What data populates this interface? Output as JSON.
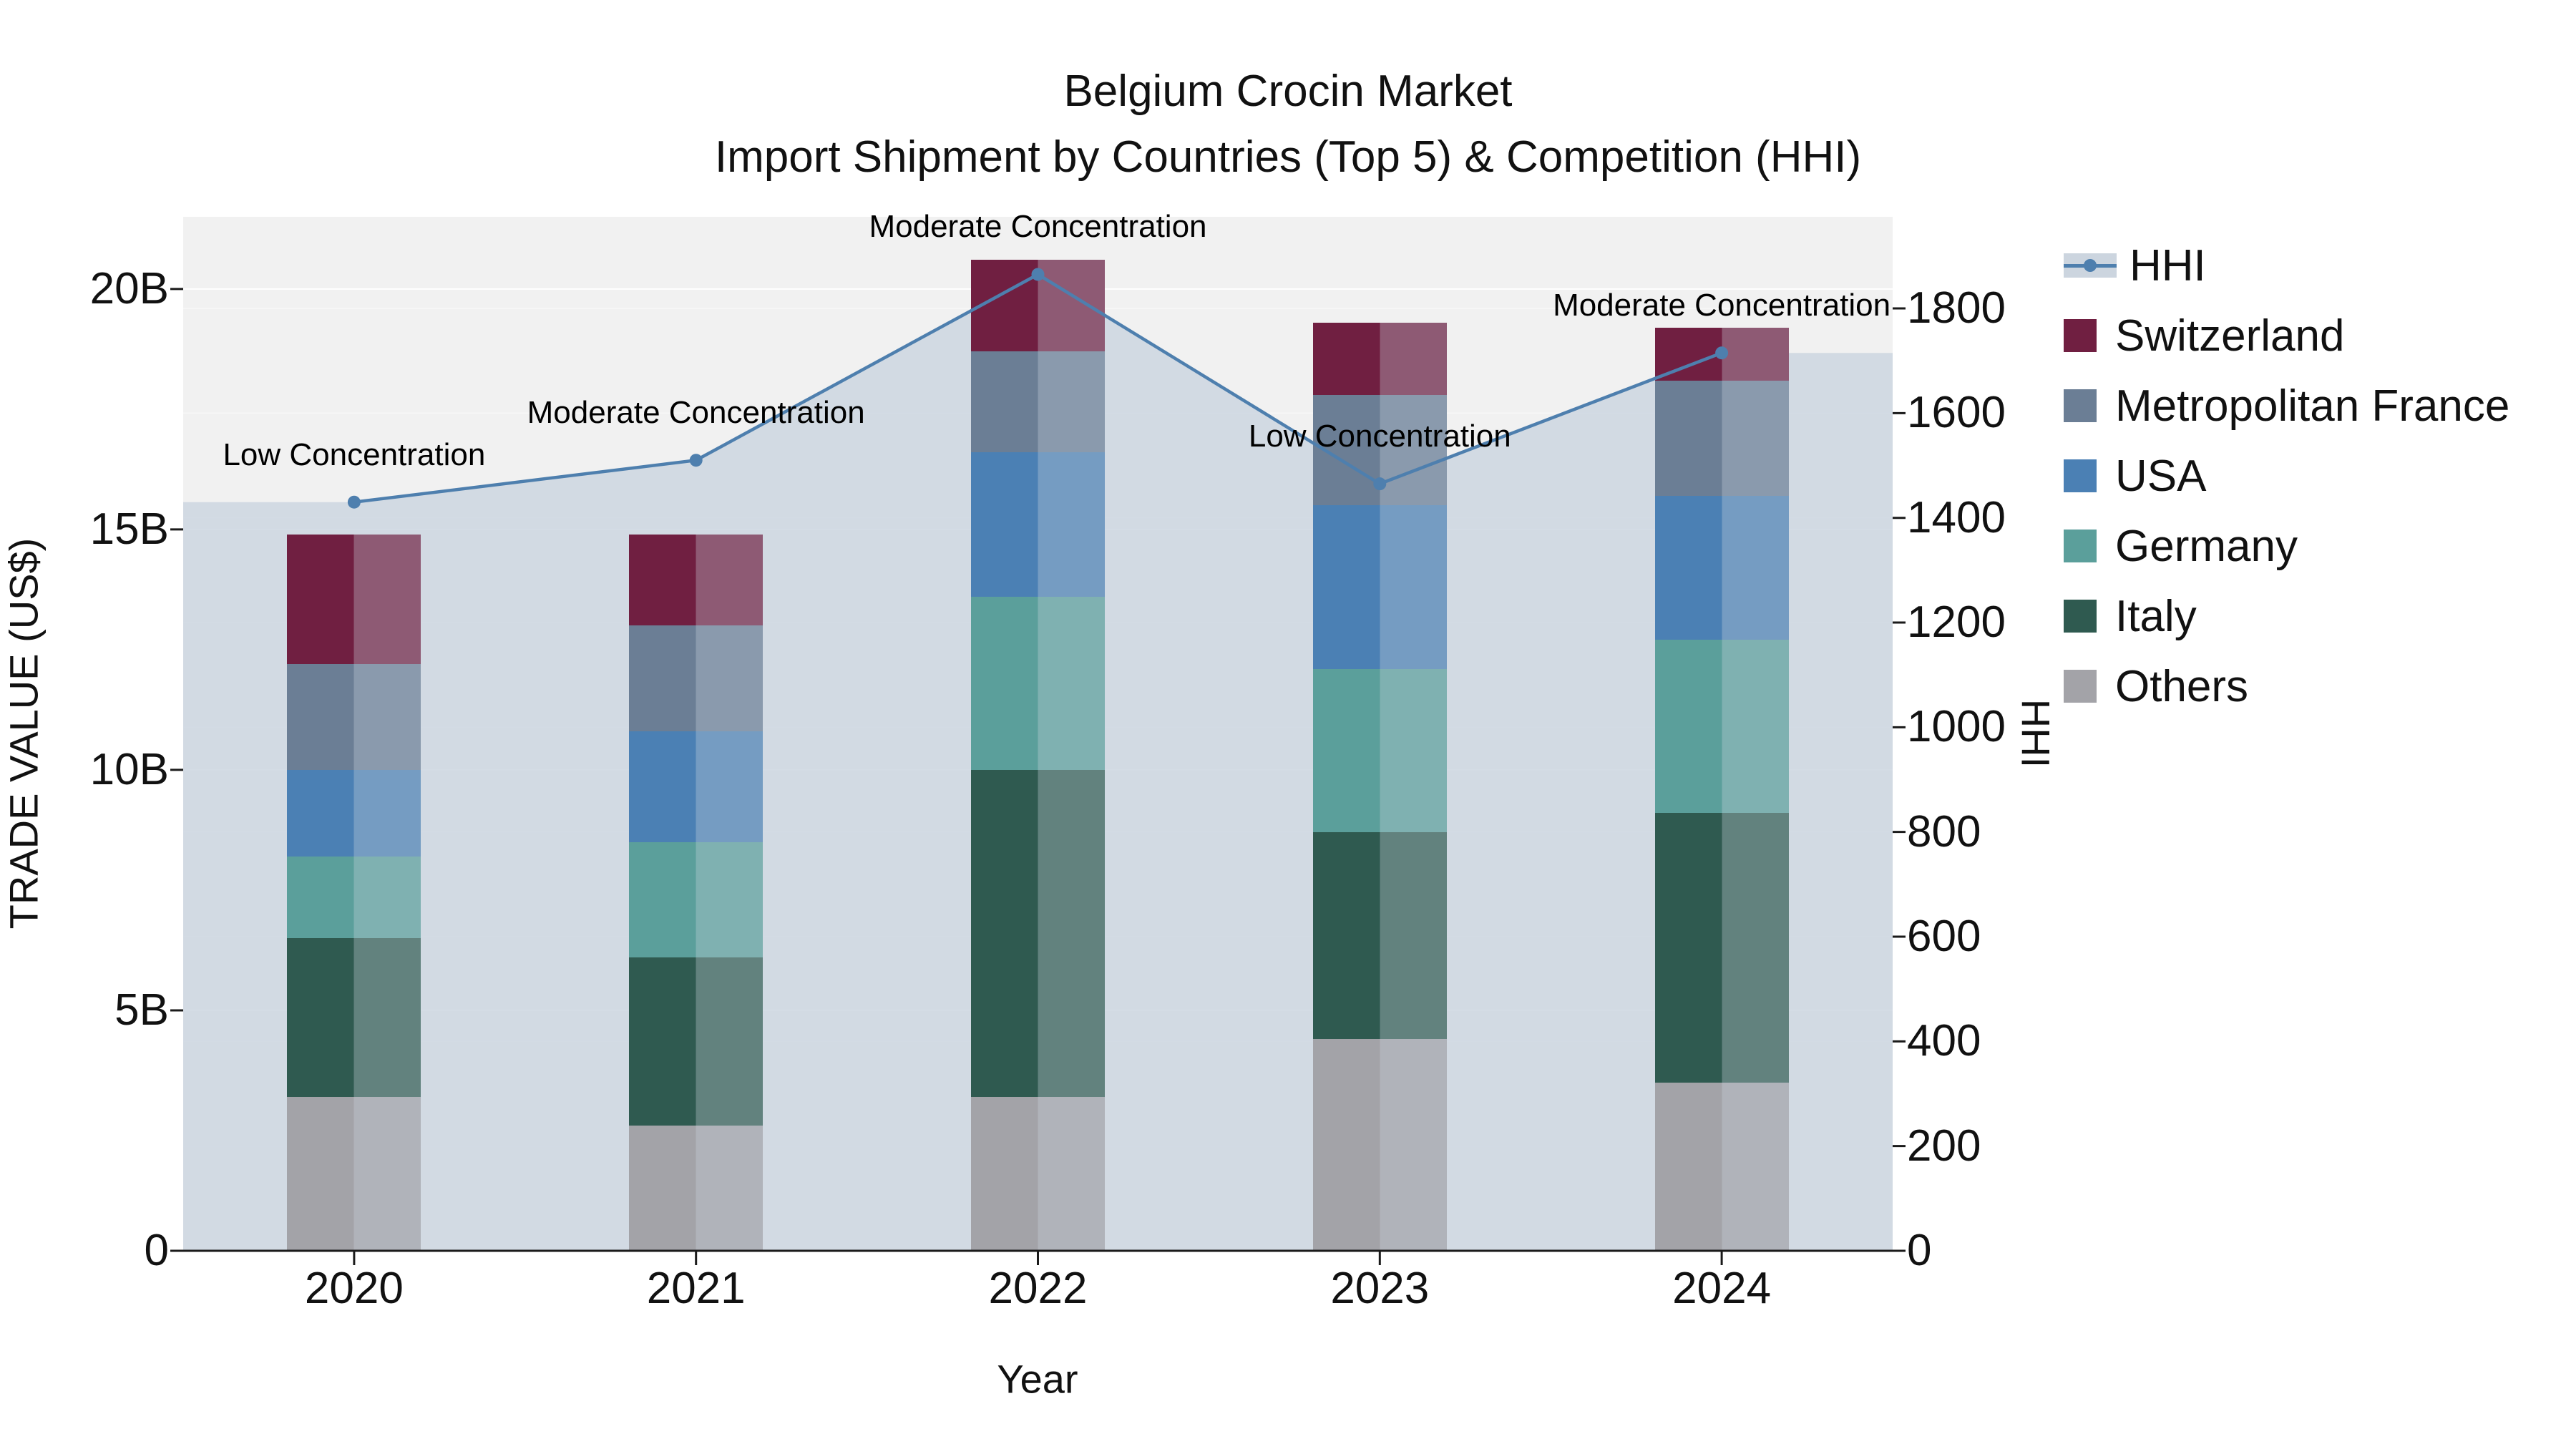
{
  "title": {
    "line1": "Belgium Crocin Market",
    "line2": "Import Shipment by Countries (Top 5) & Competition (HHI)"
  },
  "axis": {
    "left_label": "TRADE VALUE (US$)",
    "right_label": "HHI",
    "x_label": "Year",
    "left_ticks": [
      {
        "v": 0,
        "label": "0"
      },
      {
        "v": 5,
        "label": "5B"
      },
      {
        "v": 10,
        "label": "10B"
      },
      {
        "v": 15,
        "label": "15B"
      },
      {
        "v": 20,
        "label": "20B"
      }
    ],
    "right_ticks": [
      0,
      200,
      400,
      600,
      800,
      1000,
      1200,
      1400,
      1600,
      1800
    ]
  },
  "chart_data": {
    "type": "bar",
    "subtype": "stacked-bars-with-line-overlay",
    "title": "Belgium Crocin Market Import Shipment by Countries (Top 5) & Competition (HHI)",
    "xlabel": "Year",
    "ylabel_left": "TRADE VALUE (US$)",
    "ylabel_right": "HHI",
    "categories": [
      "2020",
      "2021",
      "2022",
      "2023",
      "2024"
    ],
    "unit": "billion US$",
    "ylim_left": [
      0,
      21.5
    ],
    "ylim_right": [
      0,
      1975
    ],
    "grid": true,
    "legend_position": "right",
    "series": [
      {
        "name": "Others",
        "color": "#a3a3a8",
        "values": [
          3.2,
          2.6,
          3.2,
          4.4,
          3.5
        ]
      },
      {
        "name": "Italy",
        "color": "#2f5a50",
        "values": [
          3.3,
          3.5,
          6.8,
          4.3,
          5.6
        ]
      },
      {
        "name": "Germany",
        "color": "#5b9f9b",
        "values": [
          1.7,
          2.4,
          3.6,
          3.4,
          3.6
        ]
      },
      {
        "name": "USA",
        "color": "#4b80b4",
        "values": [
          1.8,
          2.3,
          3.0,
          3.4,
          3.0
        ]
      },
      {
        "name": "Metropolitan France",
        "color": "#6b7e95",
        "values": [
          2.2,
          2.2,
          2.1,
          2.3,
          2.4
        ]
      },
      {
        "name": "Switzerland",
        "color": "#701f41",
        "values": [
          2.7,
          1.9,
          1.9,
          1.5,
          1.1
        ]
      }
    ],
    "bar_totals": [
      14.9,
      14.9,
      20.6,
      19.3,
      19.2
    ],
    "line": {
      "name": "HHI",
      "color": "#4e7fae",
      "fill_color": "#cdd6e0",
      "values": [
        1430,
        1510,
        1865,
        1465,
        1715
      ],
      "annotations": [
        "Low Concentration",
        "Moderate Concentration",
        "Moderate Concentration",
        "Low Concentration",
        "Moderate Concentration"
      ]
    }
  },
  "legend": {
    "items": [
      {
        "label": "HHI",
        "type": "line",
        "color": "#4e7fae"
      },
      {
        "label": "Switzerland",
        "type": "square",
        "color": "#701f41"
      },
      {
        "label": "Metropolitan France",
        "type": "square",
        "color": "#6b7e95"
      },
      {
        "label": "USA",
        "type": "square",
        "color": "#4b80b4"
      },
      {
        "label": "Germany",
        "type": "square",
        "color": "#5b9f9b"
      },
      {
        "label": "Italy",
        "type": "square",
        "color": "#2f5a50"
      },
      {
        "label": "Others",
        "type": "square",
        "color": "#a3a3a8"
      }
    ]
  }
}
